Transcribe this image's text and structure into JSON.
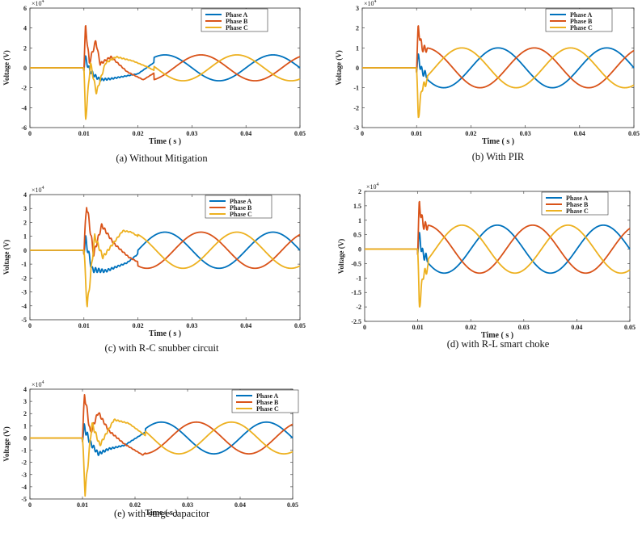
{
  "figure": {
    "layout": "2-column grid of 5 panels"
  },
  "chart_data": [
    {
      "type": "line",
      "panel": "a",
      "caption": "(a) Without Mitigation",
      "xlabel": "Time ( s )",
      "ylabel": "Voltage (V)",
      "y_multiplier": "x10^4",
      "xlim": [
        0,
        0.05
      ],
      "ylim": [
        -6,
        6
      ],
      "xticks": [
        "0",
        "0.01",
        "0.02",
        "0.03",
        "0.04",
        "0.05"
      ],
      "yticks": [
        "-6",
        "-4",
        "-2",
        "0",
        "2",
        "4",
        "6"
      ],
      "legend": [
        "Phase A",
        "Phase B",
        "Phase C"
      ],
      "legend_position": "top-right",
      "steady_amplitude": 1.3,
      "transient_peaks": {
        "Phase A": 1.1,
        "Phase B": 4.2,
        "Phase C": -5.3
      },
      "disturbance_start": 0.01,
      "settle_time": 0.023,
      "series": [
        {
          "name": "Phase A",
          "color": "#0072BD",
          "samples": [
            [
              0,
              0
            ],
            [
              0.01,
              0
            ],
            [
              0.0102,
              1.1
            ],
            [
              0.011,
              -0.2
            ],
            [
              0.012,
              -0.8
            ],
            [
              0.013,
              -1.2
            ],
            [
              0.015,
              -1.1
            ],
            [
              0.017,
              -0.9
            ],
            [
              0.02,
              -0.6
            ],
            [
              0.025,
              1.3
            ],
            [
              0.03,
              -0.2
            ],
            [
              0.035,
              -1.3
            ],
            [
              0.04,
              0.2
            ],
            [
              0.045,
              1.3
            ],
            [
              0.05,
              0
            ]
          ]
        },
        {
          "name": "Phase B",
          "color": "#D95319",
          "samples": [
            [
              0,
              0
            ],
            [
              0.01,
              0
            ],
            [
              0.0103,
              4.2
            ],
            [
              0.011,
              0.5
            ],
            [
              0.0122,
              2.7
            ],
            [
              0.013,
              0.4
            ],
            [
              0.015,
              1.1
            ],
            [
              0.018,
              -0.4
            ],
            [
              0.021,
              -1.2
            ],
            [
              0.0283,
              1.3
            ],
            [
              0.0333,
              -1.3
            ],
            [
              0.0383,
              1.3
            ],
            [
              0.0433,
              -1.3
            ],
            [
              0.05,
              1.1
            ]
          ]
        },
        {
          "name": "Phase C",
          "color": "#EDB120",
          "samples": [
            [
              0,
              0
            ],
            [
              0.01,
              0
            ],
            [
              0.0103,
              -5.3
            ],
            [
              0.0112,
              0.5
            ],
            [
              0.0123,
              -2.5
            ],
            [
              0.014,
              0.5
            ],
            [
              0.016,
              1.1
            ],
            [
              0.019,
              0.7
            ],
            [
              0.0217,
              0.1
            ],
            [
              0.0267,
              -1.3
            ],
            [
              0.0317,
              0.8
            ],
            [
              0.0383,
              1.3
            ],
            [
              0.0467,
              -1.3
            ],
            [
              0.05,
              -1.1
            ]
          ]
        }
      ]
    },
    {
      "type": "line",
      "panel": "b",
      "caption": "(b) With PIR",
      "xlabel": "Time ( s )",
      "ylabel": "Voltage (V)",
      "y_multiplier": "x10^4",
      "xlim": [
        0,
        0.05
      ],
      "ylim": [
        -3,
        3
      ],
      "xticks": [
        "0",
        "0.01",
        "0.02",
        "0.03",
        "0.04",
        "0.05"
      ],
      "yticks": [
        "-3",
        "-2",
        "-1",
        "0",
        "1",
        "2",
        "3"
      ],
      "legend": [
        "Phase A",
        "Phase B",
        "Phase C"
      ],
      "legend_position": "top-right",
      "steady_amplitude": 1.0,
      "transient_peaks": {
        "Phase A": 0.6,
        "Phase B": 2.0,
        "Phase C": -2.5
      },
      "disturbance_start": 0.01,
      "settle_time": 0.012,
      "series": [
        {
          "name": "Phase A",
          "color": "#0072BD",
          "samples": [
            [
              0,
              0
            ],
            [
              0.01,
              0
            ],
            [
              0.0102,
              0.6
            ],
            [
              0.011,
              -0.2
            ],
            [
              0.0155,
              -1.0
            ],
            [
              0.0255,
              1.0
            ],
            [
              0.0355,
              -1.0
            ],
            [
              0.0455,
              1.0
            ],
            [
              0.05,
              0
            ]
          ]
        },
        {
          "name": "Phase B",
          "color": "#D95319",
          "samples": [
            [
              0,
              0
            ],
            [
              0.01,
              0
            ],
            [
              0.0103,
              2.0
            ],
            [
              0.011,
              1.0
            ],
            [
              0.0122,
              0.9
            ],
            [
              0.0222,
              -1.0
            ],
            [
              0.0322,
              1.0
            ],
            [
              0.0422,
              -1.0
            ],
            [
              0.05,
              0.9
            ]
          ]
        },
        {
          "name": "Phase C",
          "color": "#EDB120",
          "samples": [
            [
              0,
              0
            ],
            [
              0.01,
              0
            ],
            [
              0.0103,
              -2.5
            ],
            [
              0.011,
              -1.0
            ],
            [
              0.0122,
              -0.6
            ],
            [
              0.0188,
              1.0
            ],
            [
              0.0288,
              -1.0
            ],
            [
              0.0388,
              1.0
            ],
            [
              0.05,
              -0.9
            ]
          ]
        }
      ]
    },
    {
      "type": "line",
      "panel": "c",
      "caption": "(c) with R-C snubber circuit",
      "xlabel": "Time ( s )",
      "ylabel": "Voltage (V)",
      "y_multiplier": "x10^4",
      "xlim": [
        0,
        0.05
      ],
      "ylim": [
        -5,
        4
      ],
      "xticks": [
        "0",
        "0.01",
        "0.02",
        "0.03",
        "0.04",
        "0.05"
      ],
      "yticks": [
        "-5",
        "-4",
        "-3",
        "-2",
        "-1",
        "0",
        "1",
        "2",
        "3",
        "4"
      ],
      "legend": [
        "Phase A",
        "Phase B",
        "Phase C"
      ],
      "legend_position": "top-right",
      "steady_amplitude": 1.3,
      "transient_peaks": {
        "Phase A": 0.8,
        "Phase B": 3.3,
        "Phase C": -4.1
      },
      "disturbance_start": 0.01,
      "settle_time": 0.02,
      "series": [
        {
          "name": "Phase A",
          "color": "#0072BD",
          "samples": [
            [
              0,
              0
            ],
            [
              0.01,
              0
            ],
            [
              0.0103,
              0.8
            ],
            [
              0.0115,
              -1.4
            ],
            [
              0.014,
              -1.5
            ],
            [
              0.018,
              -0.9
            ],
            [
              0.025,
              1.3
            ],
            [
              0.035,
              -1.3
            ],
            [
              0.045,
              1.3
            ],
            [
              0.05,
              0
            ]
          ]
        },
        {
          "name": "Phase B",
          "color": "#D95319",
          "samples": [
            [
              0,
              0
            ],
            [
              0.01,
              0
            ],
            [
              0.0105,
              3.3
            ],
            [
              0.0118,
              -0.3
            ],
            [
              0.0133,
              1.8
            ],
            [
              0.0155,
              0.5
            ],
            [
              0.0183,
              -0.5
            ],
            [
              0.0222,
              -1.3
            ],
            [
              0.0322,
              1.3
            ],
            [
              0.0422,
              -1.3
            ],
            [
              0.05,
              1.1
            ]
          ]
        },
        {
          "name": "Phase C",
          "color": "#EDB120",
          "samples": [
            [
              0,
              0
            ],
            [
              0.01,
              0
            ],
            [
              0.0106,
              -4.1
            ],
            [
              0.012,
              1.0
            ],
            [
              0.0135,
              -0.5
            ],
            [
              0.0172,
              1.4
            ],
            [
              0.0188,
              1.3
            ],
            [
              0.0288,
              -1.3
            ],
            [
              0.0388,
              1.3
            ],
            [
              0.05,
              -1.1
            ]
          ]
        }
      ]
    },
    {
      "type": "line",
      "panel": "d",
      "caption": "(d) with R-L smart choke",
      "xlabel": "Time ( s )",
      "ylabel": "Voltage (V)",
      "y_multiplier": "x10^4",
      "xlim": [
        0,
        0.05
      ],
      "ylim": [
        -2.5,
        2
      ],
      "xticks": [
        "0",
        "0.01",
        "0.02",
        "0.03",
        "0.04",
        "0.05"
      ],
      "yticks": [
        "-2.5",
        "-2",
        "-1.5",
        "-1",
        "-0.5",
        "0",
        "0.5",
        "1",
        "1.5",
        "2"
      ],
      "legend": [
        "Phase A",
        "Phase B",
        "Phase C"
      ],
      "legend_position": "top-right",
      "steady_amplitude": 0.83,
      "transient_peaks": {
        "Phase A": 0.5,
        "Phase B": 1.55,
        "Phase C": -2.0
      },
      "disturbance_start": 0.01,
      "settle_time": 0.012,
      "series": [
        {
          "name": "Phase A",
          "color": "#0072BD",
          "samples": [
            [
              0,
              0
            ],
            [
              0.01,
              0
            ],
            [
              0.0102,
              0.5
            ],
            [
              0.011,
              -0.2
            ],
            [
              0.0155,
              -0.83
            ],
            [
              0.0255,
              0.83
            ],
            [
              0.0355,
              -0.83
            ],
            [
              0.0455,
              0.83
            ],
            [
              0.05,
              0
            ]
          ]
        },
        {
          "name": "Phase B",
          "color": "#D95319",
          "samples": [
            [
              0,
              0
            ],
            [
              0.01,
              0
            ],
            [
              0.0103,
              1.55
            ],
            [
              0.011,
              0.85
            ],
            [
              0.0122,
              0.75
            ],
            [
              0.0222,
              -0.83
            ],
            [
              0.0322,
              0.83
            ],
            [
              0.0422,
              -0.83
            ],
            [
              0.05,
              0.75
            ]
          ]
        },
        {
          "name": "Phase C",
          "color": "#EDB120",
          "samples": [
            [
              0,
              0
            ],
            [
              0.01,
              0
            ],
            [
              0.0103,
              -2.0
            ],
            [
              0.011,
              -0.9
            ],
            [
              0.0122,
              -0.6
            ],
            [
              0.0188,
              0.83
            ],
            [
              0.0288,
              -0.83
            ],
            [
              0.0388,
              0.83
            ],
            [
              0.05,
              -0.75
            ]
          ]
        }
      ]
    },
    {
      "type": "line",
      "panel": "e",
      "caption": "(e) with surge capacitor",
      "xlabel": "Time ( s )",
      "ylabel": "Voltage (V)",
      "y_multiplier": "x10^4",
      "xlim": [
        0,
        0.05
      ],
      "ylim": [
        -5,
        4
      ],
      "xticks": [
        "0",
        "0.01",
        "0.02",
        "0.03",
        "0.04",
        "0.05"
      ],
      "yticks": [
        "-5",
        "-4",
        "-3",
        "-2",
        "-1",
        "0",
        "1",
        "2",
        "3",
        "4"
      ],
      "legend": [
        "Phase A",
        "Phase B",
        "Phase C"
      ],
      "legend_position": "top-right",
      "steady_amplitude": 1.3,
      "transient_peaks": {
        "Phase A": 0.9,
        "Phase B": 3.6,
        "Phase C": -4.5
      },
      "disturbance_start": 0.01,
      "settle_time": 0.022,
      "series": [
        {
          "name": "Phase A",
          "color": "#0072BD",
          "samples": [
            [
              0,
              0
            ],
            [
              0.01,
              0
            ],
            [
              0.0103,
              0.9
            ],
            [
              0.0115,
              -0.4
            ],
            [
              0.013,
              -1.3
            ],
            [
              0.015,
              -0.9
            ],
            [
              0.018,
              -0.6
            ],
            [
              0.025,
              1.3
            ],
            [
              0.035,
              -1.3
            ],
            [
              0.045,
              1.3
            ],
            [
              0.05,
              0
            ]
          ]
        },
        {
          "name": "Phase B",
          "color": "#D95319",
          "samples": [
            [
              0,
              0
            ],
            [
              0.01,
              0
            ],
            [
              0.0104,
              3.6
            ],
            [
              0.0115,
              0.4
            ],
            [
              0.013,
              2.1
            ],
            [
              0.015,
              0.6
            ],
            [
              0.018,
              -0.5
            ],
            [
              0.0215,
              -1.4
            ],
            [
              0.0283,
              1.3
            ],
            [
              0.0383,
              -1.3
            ],
            [
              0.05,
              1.1
            ]
          ]
        },
        {
          "name": "Phase C",
          "color": "#EDB120",
          "samples": [
            [
              0,
              0
            ],
            [
              0.01,
              0
            ],
            [
              0.0105,
              -4.5
            ],
            [
              0.0118,
              1.2
            ],
            [
              0.0133,
              -0.6
            ],
            [
              0.016,
              1.5
            ],
            [
              0.0188,
              1.2
            ],
            [
              0.0267,
              -1.3
            ],
            [
              0.0367,
              1.3
            ],
            [
              0.0467,
              -1.3
            ],
            [
              0.05,
              -1.1
            ]
          ]
        }
      ]
    }
  ]
}
